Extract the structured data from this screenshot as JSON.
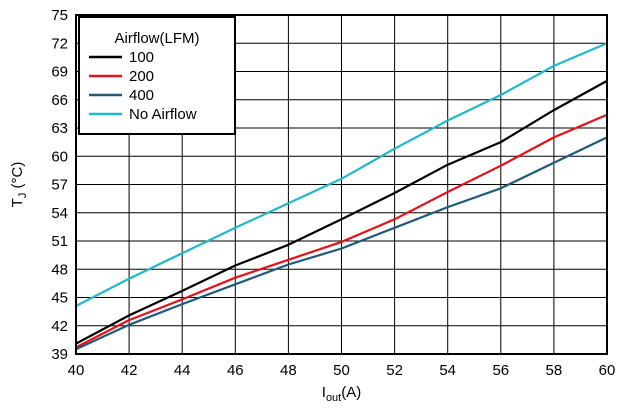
{
  "chart_data": {
    "type": "line",
    "title": "",
    "xlabel": "I",
    "xlabel_sub": "out",
    "xlabel_unit": "(A)",
    "ylabel": "T",
    "ylabel_sub": "J",
    "ylabel_unit": " (°C)",
    "xlim": [
      40,
      60
    ],
    "ylim": [
      39,
      75
    ],
    "x_ticks": [
      40,
      42,
      44,
      46,
      48,
      50,
      52,
      54,
      56,
      58,
      60
    ],
    "y_ticks": [
      39,
      42,
      45,
      48,
      51,
      54,
      57,
      60,
      63,
      66,
      69,
      72,
      75
    ],
    "grid": true,
    "legend": {
      "title": "Airflow(LFM)",
      "position": "top-left"
    },
    "x": [
      40,
      42,
      44,
      46,
      48,
      50,
      52,
      54,
      56,
      58,
      60
    ],
    "series": [
      {
        "name": "100",
        "color": "#000000",
        "values": [
          40.1,
          43.1,
          45.7,
          48.4,
          50.6,
          53.3,
          56.1,
          59.1,
          61.5,
          64.9,
          68.0
        ]
      },
      {
        "name": "200",
        "color": "#e8101a",
        "values": [
          39.7,
          42.6,
          44.8,
          47.1,
          49.0,
          50.9,
          53.3,
          56.2,
          59.0,
          62.0,
          64.4
        ]
      },
      {
        "name": "400",
        "color": "#1f5a7a",
        "values": [
          39.5,
          42.1,
          44.3,
          46.4,
          48.5,
          50.2,
          52.4,
          54.6,
          56.6,
          59.3,
          62.0
        ]
      },
      {
        "name": "No Airflow",
        "color": "#1fb8cc",
        "values": [
          44.1,
          47.0,
          49.7,
          52.4,
          55.0,
          57.6,
          60.8,
          63.8,
          66.5,
          69.6,
          72.0
        ]
      }
    ]
  }
}
